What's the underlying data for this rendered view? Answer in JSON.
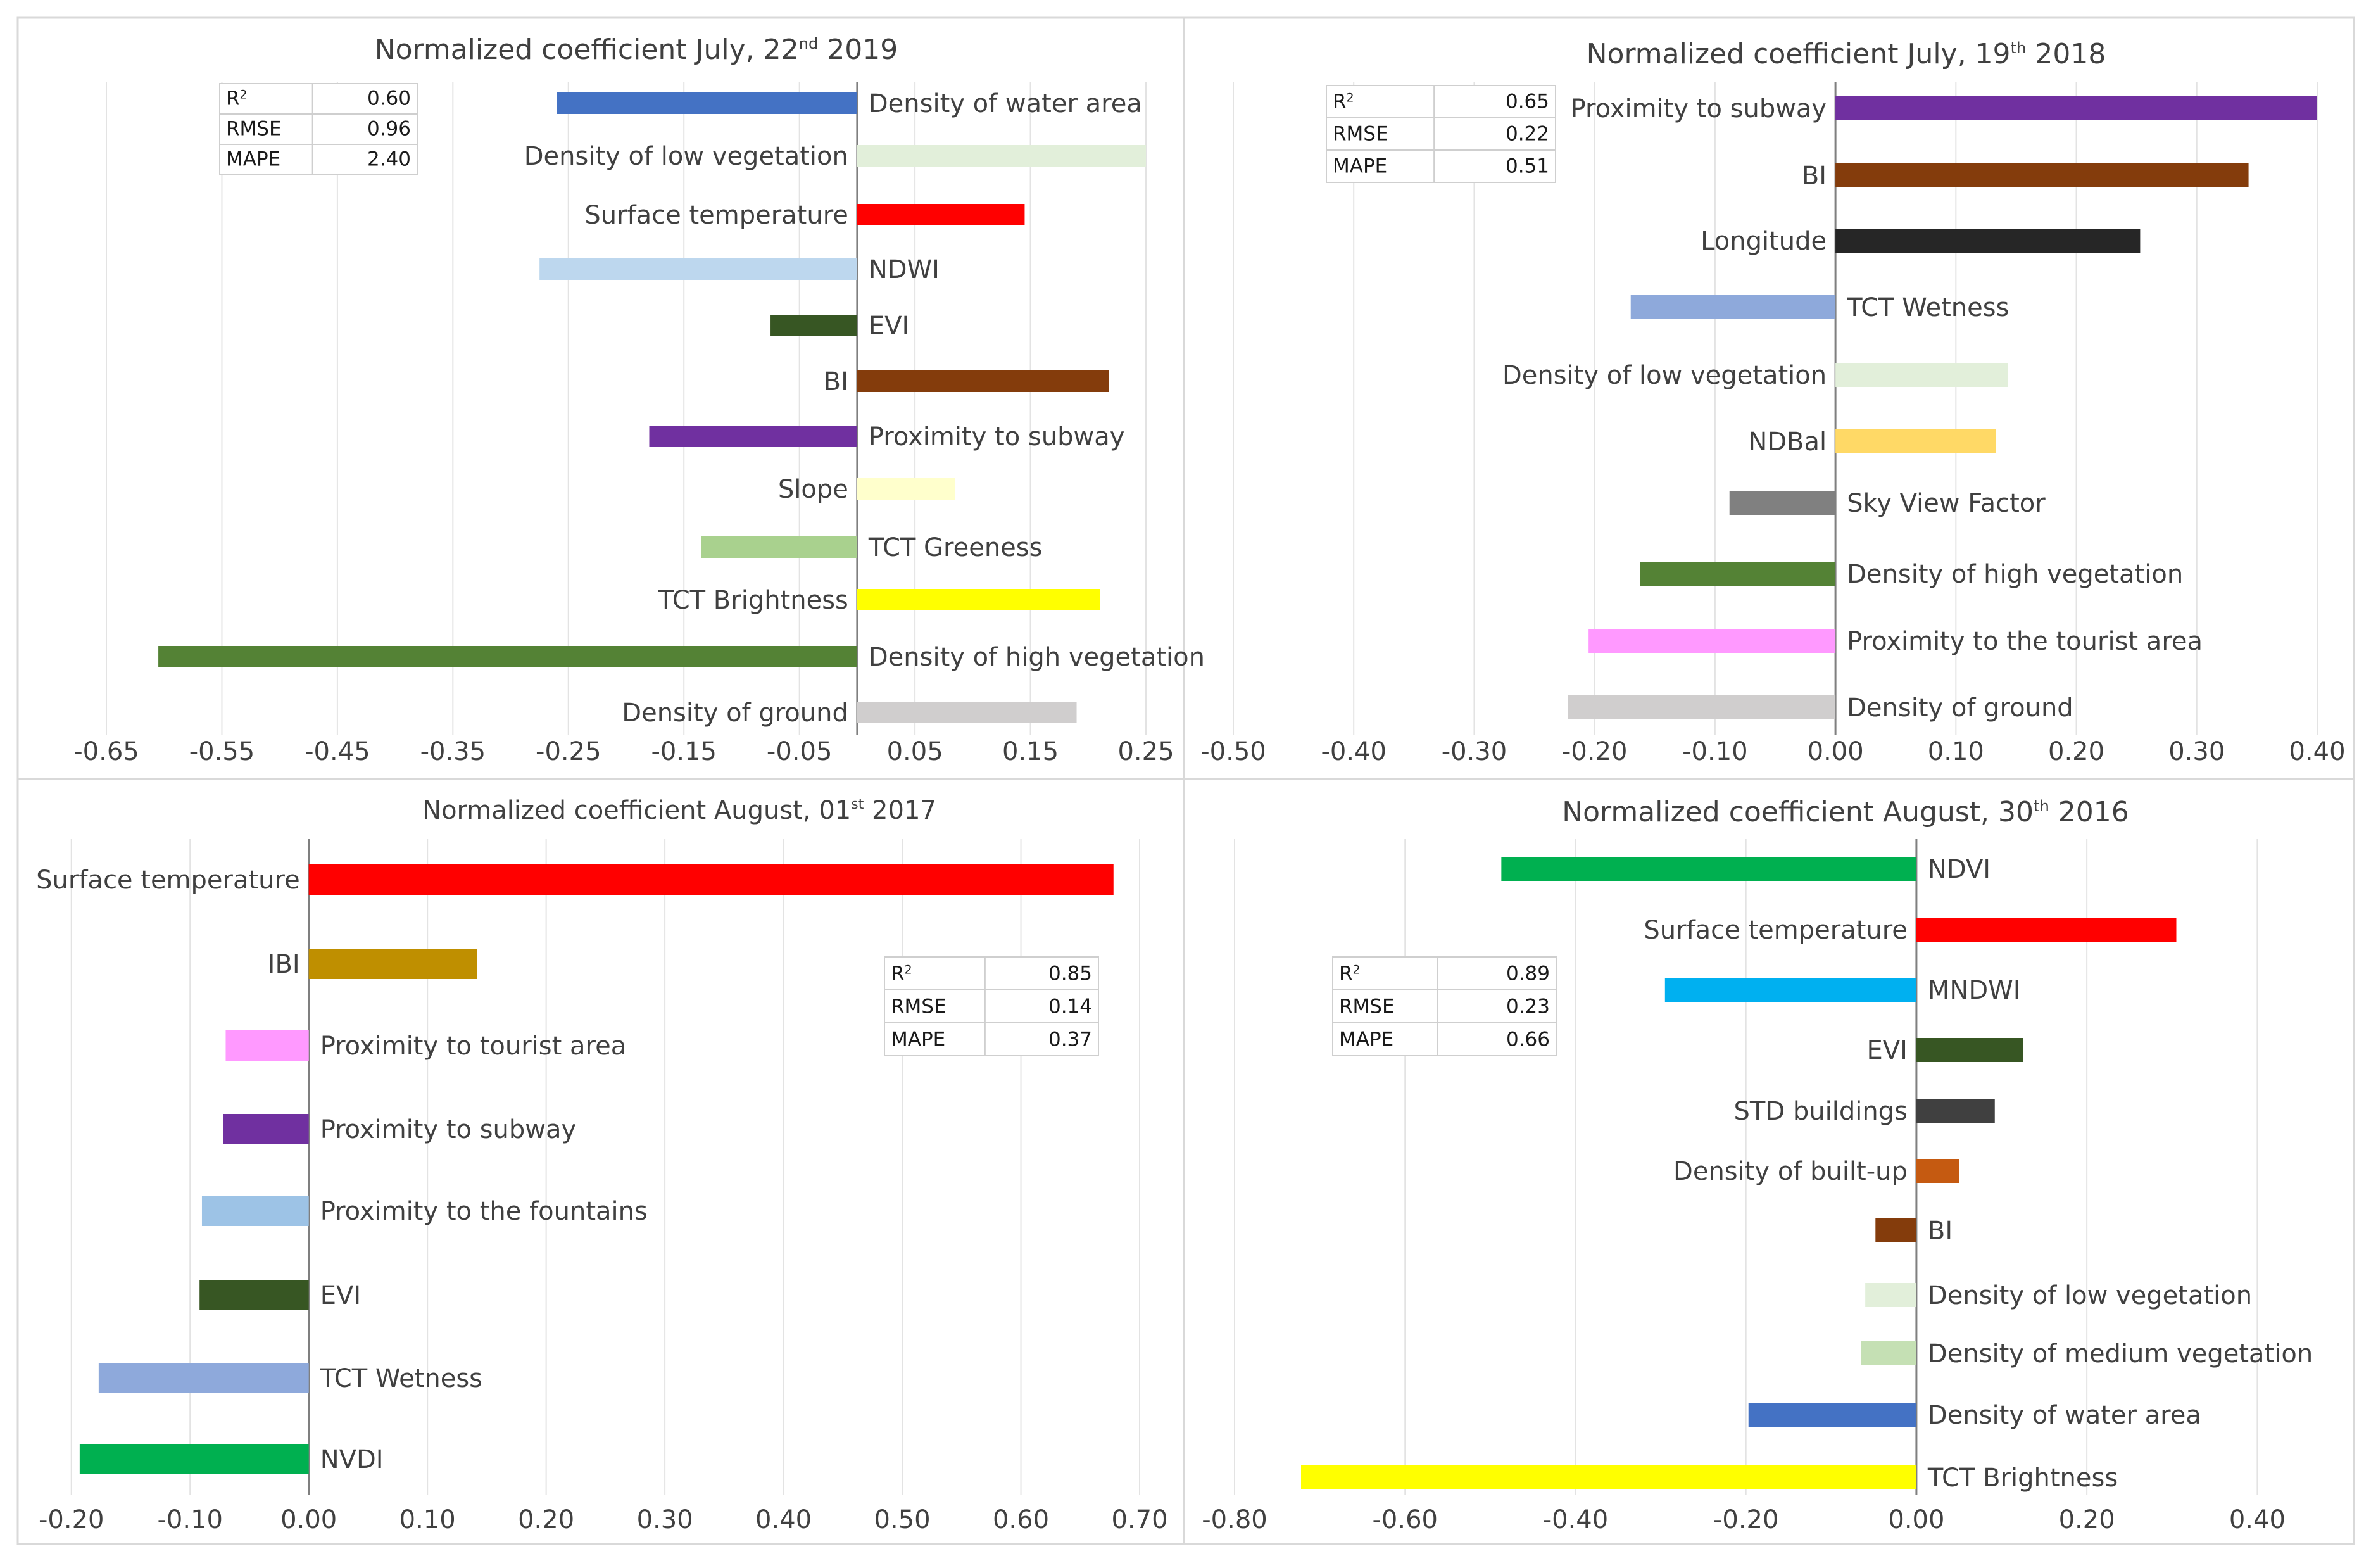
{
  "chart_data": [
    {
      "type": "bar",
      "orientation": "horizontal",
      "title": "Normalized coefficient  July, 22",
      "title_sup": "nd",
      "title_year": " 2019",
      "categories": [
        "Density of water area",
        "Density of low vegetation",
        "Surface temperature",
        "NDWI",
        "EVI",
        "BI",
        "Proximity to subway",
        "Slope",
        "TCT Greeness",
        "TCT Brightness",
        "Density of high vegetation",
        "Density of ground"
      ],
      "values": [
        -0.26,
        0.25,
        0.145,
        -0.275,
        -0.075,
        0.218,
        -0.18,
        0.085,
        -0.135,
        0.21,
        -0.605,
        0.19
      ],
      "colors": [
        "#4472C4",
        "#E2EFDA",
        "#FF0000",
        "#BDD7EE",
        "#375623",
        "#843C0C",
        "#7030A0",
        "#FFFFCC",
        "#A9D18E",
        "#FFFF00",
        "#548235",
        "#D0CECE"
      ],
      "xlim": [
        -0.65,
        0.25
      ],
      "ticks": [
        -0.65,
        -0.55,
        -0.45,
        -0.35,
        -0.25,
        -0.15,
        -0.05,
        0.05,
        0.15,
        0.25
      ],
      "tick_labels": [
        "-0.65",
        "-0.55",
        "-0.45",
        "-0.35",
        "-0.25",
        "-0.15",
        "-0.05",
        "0.05",
        "0.15",
        "0.25"
      ],
      "stats": [
        {
          "label": "R",
          "sup": "2",
          "value": "0.60"
        },
        {
          "label": "RMSE",
          "sup": "",
          "value": "0.96"
        },
        {
          "label": "MAPE",
          "sup": "",
          "value": "2.40"
        }
      ]
    },
    {
      "type": "bar",
      "orientation": "horizontal",
      "title": "Normalized coefficient  July, 19",
      "title_sup": "th",
      "title_year": " 2018",
      "categories": [
        "Proximity to subway",
        "BI",
        "Longitude",
        "TCT Wetness",
        "Density of low vegetation",
        "NDBal",
        "Sky View Factor",
        "Density of high vegetation",
        "Proximity to the tourist area",
        "Density of ground"
      ],
      "values": [
        0.4,
        0.343,
        0.253,
        -0.17,
        0.143,
        0.133,
        -0.088,
        -0.162,
        -0.205,
        -0.222
      ],
      "colors": [
        "#7030A0",
        "#843C0C",
        "#262626",
        "#8EA9DB",
        "#E2EFDA",
        "#FFD966",
        "#808080",
        "#548235",
        "#FF99FF",
        "#D0CECE"
      ],
      "xlim": [
        -0.5,
        0.4
      ],
      "ticks": [
        -0.5,
        -0.4,
        -0.3,
        -0.2,
        -0.1,
        0.0,
        0.1,
        0.2,
        0.3,
        0.4
      ],
      "tick_labels": [
        "-0.50",
        "-0.40",
        "-0.30",
        "-0.20",
        "-0.10",
        "0.00",
        "0.10",
        "0.20",
        "0.30",
        "0.40"
      ],
      "stats": [
        {
          "label": "R",
          "sup": "2",
          "value": "0.65"
        },
        {
          "label": "RMSE",
          "sup": "",
          "value": "0.22"
        },
        {
          "label": "MAPE",
          "sup": "",
          "value": "0.51"
        }
      ]
    },
    {
      "type": "bar",
      "orientation": "horizontal",
      "title": "Normalized coefficient  August, 01",
      "title_sup": "st",
      "title_year": " 2017",
      "categories": [
        "Surface temperature",
        "IBI",
        "Proximity to tourist area",
        "Proximity to subway",
        "Proximity to the fountains",
        "EVI",
        "TCT Wetness",
        "NVDI"
      ],
      "values": [
        0.678,
        0.142,
        -0.07,
        -0.072,
        -0.09,
        -0.092,
        -0.177,
        -0.193
      ],
      "colors": [
        "#FF0000",
        "#BF8F00",
        "#FF99FF",
        "#7030A0",
        "#9DC3E6",
        "#375623",
        "#8EA9DB",
        "#00B050"
      ],
      "xlim": [
        -0.21,
        0.7
      ],
      "ticks": [
        -0.2,
        -0.1,
        0.0,
        0.1,
        0.2,
        0.3,
        0.4,
        0.5,
        0.6,
        0.7
      ],
      "tick_labels": [
        "-0.20",
        "-0.10",
        "0.00",
        "0.10",
        "0.20",
        "0.30",
        "0.40",
        "0.50",
        "0.60",
        "0.70"
      ],
      "stats": [
        {
          "label": "R",
          "sup": "2",
          "value": "0.85"
        },
        {
          "label": "RMSE",
          "sup": "",
          "value": "0.14"
        },
        {
          "label": "MAPE",
          "sup": "",
          "value": "0.37"
        }
      ]
    },
    {
      "type": "bar",
      "orientation": "horizontal",
      "title": "Normalized coefficient  August, 30",
      "title_sup": "th",
      "title_year": " 2016",
      "categories": [
        "NDVI",
        "Surface temperature",
        "MNDWI",
        "EVI",
        "STD buildings",
        "Density of built-up",
        "BI",
        "Density of low vegetation",
        "Density of medium vegetation",
        "Density of water area",
        "TCT Brightness"
      ],
      "values": [
        -0.487,
        0.305,
        -0.295,
        0.125,
        0.092,
        0.05,
        -0.048,
        -0.06,
        -0.065,
        -0.197,
        -0.722
      ],
      "colors": [
        "#00B050",
        "#FF0000",
        "#00B0F0",
        "#375623",
        "#404040",
        "#C55A11",
        "#843C0C",
        "#E2EFDA",
        "#C5E0B4",
        "#4472C4",
        "#FFFF00"
      ],
      "xlim": [
        -0.8,
        0.5
      ],
      "ticks": [
        -0.8,
        -0.6,
        -0.4,
        -0.2,
        0.0,
        0.2,
        0.4
      ],
      "tick_labels": [
        "-0.80",
        "-0.60",
        "-0.40",
        "-0.20",
        "0.00",
        "0.20",
        "0.40"
      ],
      "stats": [
        {
          "label": "R",
          "sup": "2",
          "value": "0.89"
        },
        {
          "label": "RMSE",
          "sup": "",
          "value": "0.23"
        },
        {
          "label": "MAPE",
          "sup": "",
          "value": "0.66"
        }
      ]
    }
  ]
}
